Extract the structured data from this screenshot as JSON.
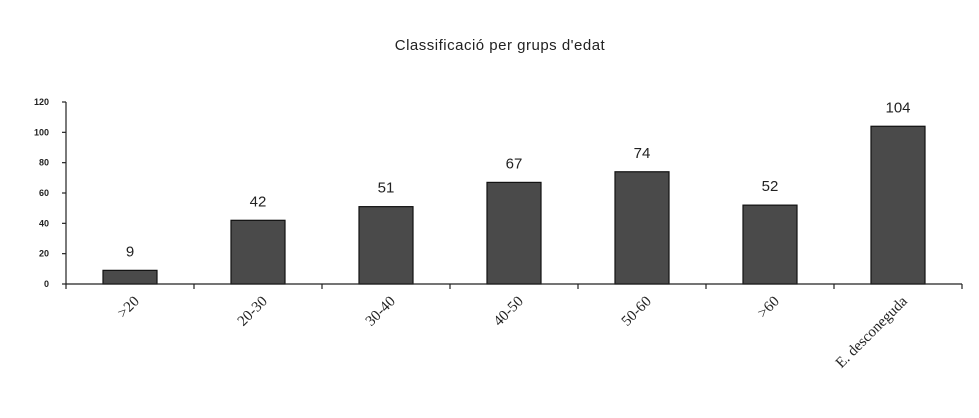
{
  "chart_data": {
    "type": "bar",
    "title": "Classificació per grups d'edat",
    "categories": [
      ">20",
      "20-30",
      "30-40",
      "40-50",
      "50-60",
      ">60",
      "E. desconeguda"
    ],
    "values": [
      9,
      42,
      51,
      67,
      74,
      52,
      104
    ],
    "y_ticks": [
      "0",
      "20",
      "40",
      "60",
      "80",
      "100",
      "120"
    ],
    "ylim": [
      0,
      120
    ],
    "grid": false,
    "legend": "none",
    "bar_color": "#4a4a4a"
  }
}
